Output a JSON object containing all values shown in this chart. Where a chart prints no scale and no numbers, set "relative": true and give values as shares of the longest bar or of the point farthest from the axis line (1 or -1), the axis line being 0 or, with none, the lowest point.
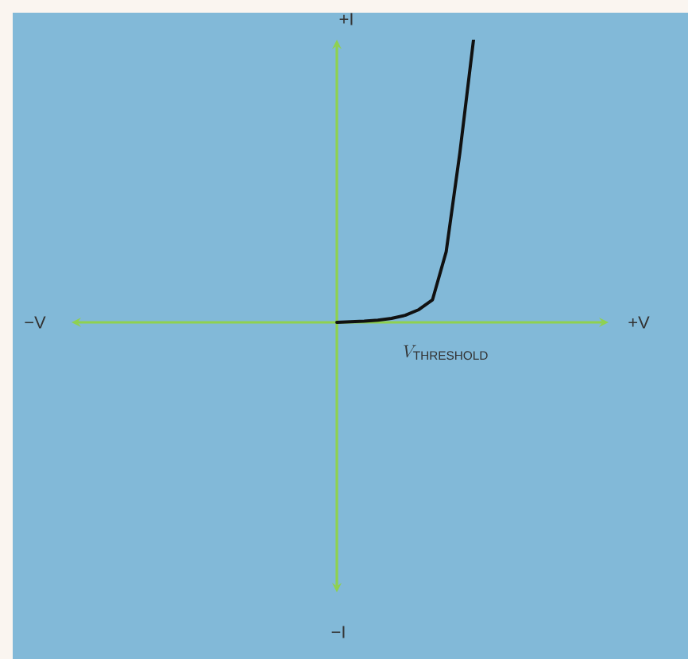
{
  "chart_data": {
    "type": "line",
    "relative": true,
    "categories": [
      null,
      null,
      null,
      null,
      null,
      null,
      null,
      null,
      null,
      null,
      null
    ],
    "values": [
      0,
      0.002,
      0.004,
      0.008,
      0.014,
      0.025,
      0.045,
      0.08,
      0.25,
      0.6,
      1
    ],
    "color": "#111111",
    "tick_labels": false,
    "annotations": [
      "+I",
      "−I",
      "−V",
      "+V",
      "V_{\\mathrm{THRESHOLD}}"
    ]
  }
}
